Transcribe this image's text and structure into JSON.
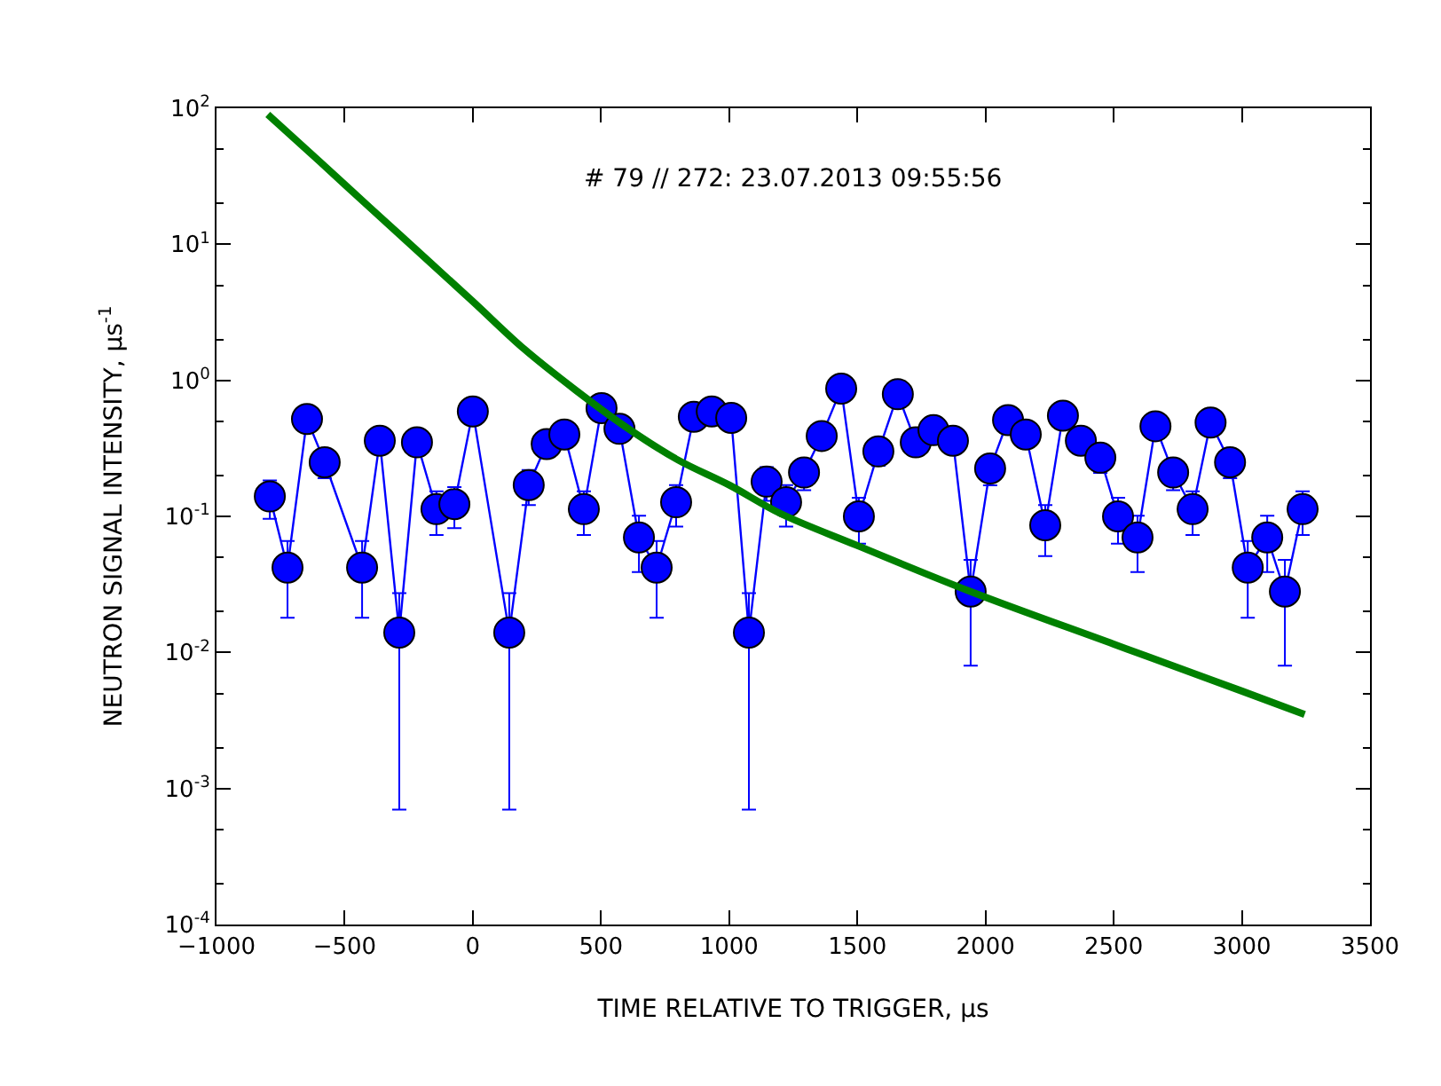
{
  "chart_data": {
    "type": "line",
    "xlabel": "TIME RELATIVE TO TRIGGER, μs",
    "ylabel": "NEUTRON SIGNAL INTENSITY, μs$^{-1}$",
    "annotations": [
      "# 79 // 272: 23.07.2013 09:55:56"
    ],
    "log": "y",
    "xlim": [
      -1000,
      3500
    ],
    "xticks": [
      {
        "value": -1000,
        "label": "−1000"
      },
      {
        "value": -500,
        "label": "−500"
      },
      0,
      500,
      1000,
      1500,
      2000,
      2500,
      3000,
      3500
    ],
    "ylim": [
      0.0001,
      100
    ],
    "yticks": [
      {
        "value": 0.0001,
        "label": "10$^{-4}$"
      },
      {
        "value": 0.001,
        "label": "10$^{-3}$"
      },
      {
        "value": 0.01,
        "label": "10$^{-2}$"
      },
      {
        "value": 0.1,
        "label": "10$^{-1}$"
      },
      {
        "value": 1,
        "label": "10$^{0}$"
      },
      {
        "value": 10,
        "label": "10$^{1}$"
      },
      {
        "value": 100,
        "label": "10$^{2}$"
      }
    ],
    "series": [
      {
        "marker": "circle",
        "color": "#0000ff",
        "x": [
          -792,
          -723,
          -647,
          -578,
          -432,
          -363,
          -287,
          -218,
          -142,
          -72,
          0,
          142,
          218,
          288,
          357,
          433,
          502,
          572,
          648,
          717,
          793,
          862,
          932,
          1008,
          1077,
          1146,
          1222,
          1292,
          1361,
          1437,
          1506,
          1582,
          1658,
          1728,
          1797,
          1873,
          1942,
          2018,
          2088,
          2157,
          2233,
          2302,
          2372,
          2448,
          2517,
          2593,
          2663,
          2732,
          2808,
          2878,
          2954,
          3023,
          3099,
          3168,
          3237
        ],
        "values": [
          0.14,
          0.042,
          0.52,
          0.25,
          0.042,
          0.36,
          0.014,
          0.35,
          0.113,
          0.123,
          0.59,
          0.014,
          0.17,
          0.34,
          0.4,
          0.113,
          0.625,
          0.44,
          0.07,
          0.042,
          0.127,
          0.54,
          0.59,
          0.53,
          0.014,
          0.18,
          0.127,
          0.21,
          0.39,
          0.87,
          0.1,
          0.3,
          0.79,
          0.35,
          0.43,
          0.36,
          0.028,
          0.225,
          0.51,
          0.4,
          0.086,
          0.55,
          0.36,
          0.27,
          0.1,
          0.07,
          0.46,
          0.21,
          0.113,
          0.49,
          0.25,
          0.042,
          0.07,
          0.028,
          0.113
        ],
        "errors": [
          0.044,
          0.024,
          null,
          0.059,
          0.024,
          0.071,
          0.0133,
          0.07,
          0.04,
          0.041,
          null,
          0.0133,
          0.049,
          0.069,
          0.075,
          0.04,
          null,
          null,
          0.031,
          0.024,
          0.043,
          null,
          null,
          null,
          0.0133,
          0.05,
          0.043,
          0.054,
          0.074,
          null,
          0.037,
          0.065,
          null,
          0.07,
          null,
          0.071,
          0.02,
          0.056,
          null,
          0.075,
          0.035,
          null,
          0.071,
          0.061,
          0.037,
          0.031,
          null,
          0.054,
          0.04,
          null,
          0.059,
          0.024,
          0.031,
          0.02,
          0.04
        ]
      },
      {
        "marker": "none",
        "color": "#008000",
        "x": [
          -800,
          -600,
          -400,
          -200,
          0,
          200,
          400,
          600,
          800,
          1000,
          1200,
          1500,
          1942,
          2500,
          3000,
          3245
        ],
        "values": [
          90,
          41,
          18.5,
          8.4,
          3.8,
          1.7,
          0.85,
          0.45,
          0.26,
          0.17,
          0.105,
          0.061,
          0.028,
          0.0115,
          0.0052,
          0.0035
        ]
      }
    ]
  }
}
